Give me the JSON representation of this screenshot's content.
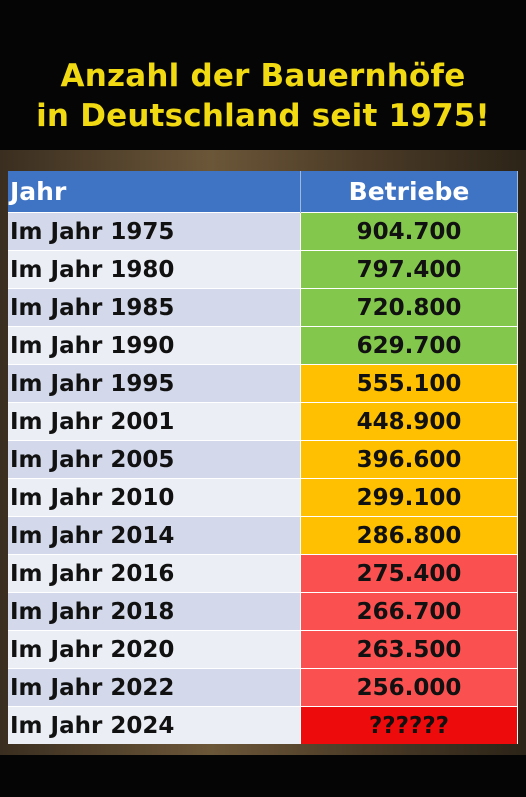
{
  "title": {
    "line1": "Anzahl der Bauernhöfe",
    "line2": "in Deutschland seit 1975!"
  },
  "colors": {
    "title": "#f2da12",
    "header": "#3f73c4",
    "green": "#83c74c",
    "amber": "#fec000",
    "red": "#fa5150",
    "deep_red": "#ee0b0b"
  },
  "table": {
    "headers": {
      "year": "Jahr",
      "count": "Betriebe"
    },
    "rows": [
      {
        "year": "Im Jahr 1975",
        "count": "904.700",
        "level": "green"
      },
      {
        "year": "Im Jahr 1980",
        "count": "797.400",
        "level": "green"
      },
      {
        "year": "Im Jahr 1985",
        "count": "720.800",
        "level": "green"
      },
      {
        "year": "Im Jahr 1990",
        "count": "629.700",
        "level": "green"
      },
      {
        "year": "Im Jahr 1995",
        "count": "555.100",
        "level": "amber"
      },
      {
        "year": "Im Jahr 2001",
        "count": "448.900",
        "level": "amber"
      },
      {
        "year": "Im Jahr 2005",
        "count": "396.600",
        "level": "amber"
      },
      {
        "year": "Im Jahr 2010",
        "count": "299.100",
        "level": "amber"
      },
      {
        "year": "Im Jahr 2014",
        "count": "286.800",
        "level": "amber"
      },
      {
        "year": "Im Jahr 2016",
        "count": "275.400",
        "level": "red"
      },
      {
        "year": "Im Jahr 2018",
        "count": "266.700",
        "level": "red"
      },
      {
        "year": "Im Jahr 2020",
        "count": "263.500",
        "level": "red"
      },
      {
        "year": "Im Jahr 2022",
        "count": "256.000",
        "level": "red"
      },
      {
        "year": "Im Jahr 2024",
        "count": "??????",
        "level": "deep-red"
      }
    ]
  }
}
